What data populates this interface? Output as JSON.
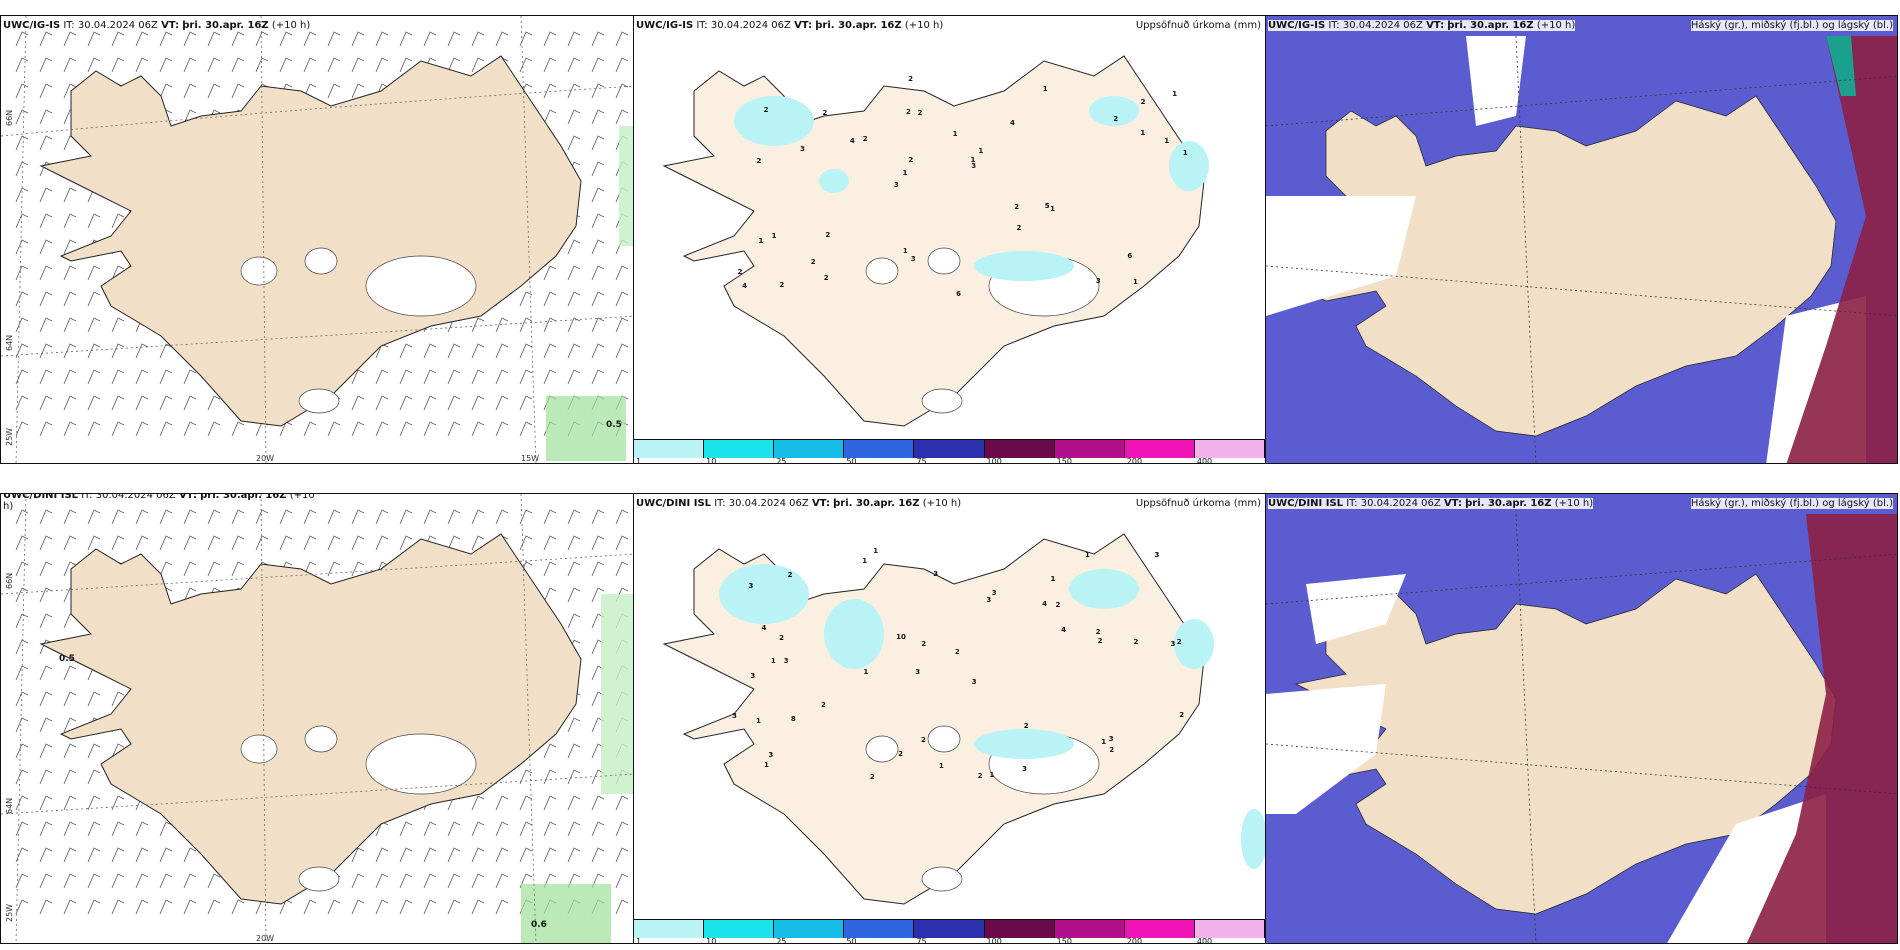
{
  "panels": {
    "top_left": {
      "model": "UWC/IG-IS",
      "it_label": "IT:",
      "it_value": "30.04.2024 06Z",
      "vt_label": "VT:",
      "vt_value": "þri. 30.apr. 16Z",
      "lead": "(+10 h)",
      "corner_value": "0.5"
    },
    "top_mid": {
      "model": "UWC/IG-IS",
      "it_label": "IT:",
      "it_value": "30.04.2024 06Z",
      "vt_label": "VT:",
      "vt_value": "þri. 30.apr. 16Z",
      "lead": "(+10 h)",
      "field": "Uppsöfnuð úrkoma (mm)"
    },
    "top_right": {
      "model": "UWC/IG-IS",
      "it_label": "IT:",
      "it_value": "30.04.2024 06Z",
      "vt_label": "VT:",
      "vt_value": "þri. 30.apr. 16Z",
      "lead": "(+10 h)",
      "field": "Háský (gr.), miðský (fj.bl.) og lágský (bl.)"
    },
    "bottom_left": {
      "model": "UWC/DINI ISL",
      "it_label": "IT:",
      "it_value": "30.04.2024 06Z",
      "vt_label": "VT:",
      "vt_value": "þri. 30.apr. 16Z",
      "lead": "(+10",
      "lead2": "h)",
      "corner_value": "0.6",
      "west_value": "0.5"
    },
    "bottom_mid": {
      "model": "UWC/DINI ISL",
      "it_label": "IT:",
      "it_value": "30.04.2024 06Z",
      "vt_label": "VT:",
      "vt_value": "þri. 30.apr. 16Z",
      "lead": "(+10 h)",
      "field": "Uppsöfnuð úrkoma (mm)"
    },
    "bottom_right": {
      "model": "UWC/DINI ISL",
      "it_label": "IT:",
      "it_value": "30.04.2024 06Z",
      "vt_label": "VT:",
      "vt_value": "þri. 30.apr. 16Z",
      "lead": "(+10 h)",
      "field": "Háský (gr.), miðský (fj.bl.) og lágský (bl.)"
    }
  },
  "map_labels": {
    "lat66": "66N",
    "lat64": "64N",
    "lon25": "25W",
    "lon20": "20W",
    "lon15": "15W"
  },
  "precip_numbers_top": [
    "1",
    "2",
    "2",
    "3",
    "4",
    "2",
    "2",
    "1",
    "1",
    "2",
    "2",
    "2",
    "2",
    "1",
    "1",
    "2",
    "2",
    "1",
    "2",
    "1",
    "1",
    "1",
    "2",
    "2",
    "1",
    "2",
    "3",
    "6",
    "5",
    "6",
    "4",
    "3",
    "2",
    "2",
    "1",
    "1",
    "4",
    "3",
    "3",
    "1",
    "2",
    "1"
  ],
  "precip_numbers_bottom": [
    "1",
    "1",
    "3",
    "3",
    "3",
    "3",
    "3",
    "4",
    "3",
    "3",
    "2",
    "1",
    "1",
    "1",
    "2",
    "1",
    "2",
    "1",
    "4",
    "2",
    "2",
    "1",
    "2",
    "2",
    "3",
    "4",
    "2",
    "2",
    "3",
    "1",
    "1",
    "3",
    "8",
    "10",
    "2",
    "2",
    "2",
    "2",
    "3",
    "3",
    "3",
    "2",
    "3",
    "2",
    "1",
    "2",
    "2"
  ],
  "colorbar": {
    "ticks": [
      "1",
      "10",
      "25",
      "50",
      "75",
      "100",
      "150",
      "200",
      "400"
    ],
    "colors": [
      "#b9f3f5",
      "#18e4ec",
      "#14bde6",
      "#2f66e0",
      "#2b2fae",
      "#6a0a4a",
      "#b10f8c",
      "#ef13b5",
      "#f2b2ea"
    ]
  },
  "colors": {
    "land": "#f1dfc8",
    "land_precip": "#fbefe1",
    "cloud_low": "#5a5ccf",
    "cloud_high": "#8c1f45"
  }
}
